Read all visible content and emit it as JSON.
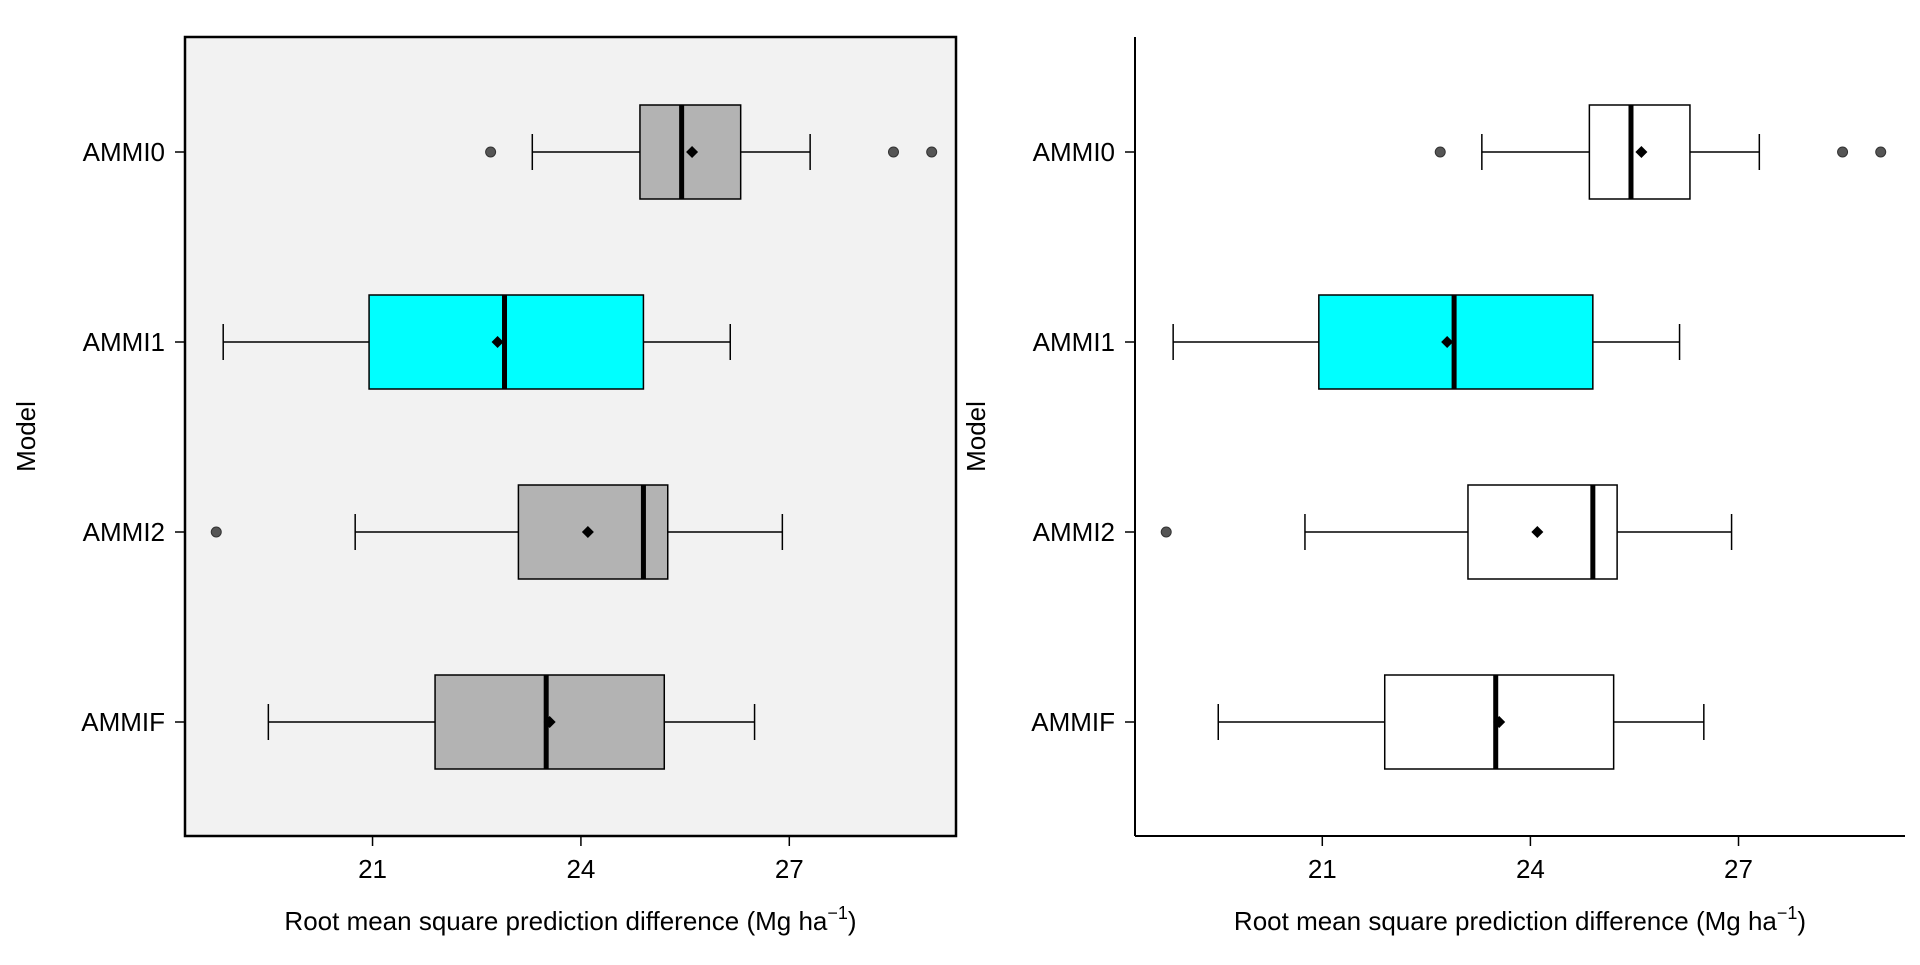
{
  "chart_data": [
    {
      "type": "boxplot",
      "orientation": "horizontal",
      "panel_style": "grey-background-framed",
      "xlabel_main": "Root mean square prediction difference (Mg ha",
      "xlabel_sup": "−1",
      "xlabel_close": ")",
      "ylabel": "Model",
      "xlim": [
        18.3,
        29.4
      ],
      "xticks": [
        21,
        24,
        27
      ],
      "xtick_labels": [
        "21",
        "24",
        "27"
      ],
      "box_color": "#b3b3b3",
      "highlight_color": "#00ffff",
      "background": "#f2f2f2",
      "boxes": [
        {
          "label": "AMMI0",
          "whisker_low": 23.3,
          "q1": 24.85,
          "median": 25.45,
          "q3": 26.3,
          "whisker_high": 27.3,
          "mean": 25.6,
          "outliers": [
            22.7,
            28.5,
            29.05
          ],
          "highlight": false
        },
        {
          "label": "AMMI1",
          "whisker_low": 18.85,
          "q1": 20.95,
          "median": 22.9,
          "q3": 24.9,
          "whisker_high": 26.15,
          "mean": 22.8,
          "outliers": [],
          "highlight": true
        },
        {
          "label": "AMMI2",
          "whisker_low": 20.75,
          "q1": 23.1,
          "median": 24.9,
          "q3": 25.25,
          "whisker_high": 26.9,
          "mean": 24.1,
          "outliers": [
            18.75
          ],
          "highlight": false
        },
        {
          "label": "AMMIF",
          "whisker_low": 19.5,
          "q1": 21.9,
          "median": 23.5,
          "q3": 25.2,
          "whisker_high": 26.5,
          "mean": 23.55,
          "outliers": [],
          "highlight": false
        }
      ]
    },
    {
      "type": "boxplot",
      "orientation": "horizontal",
      "panel_style": "white-open-axes",
      "xlabel_main": "Root mean square prediction difference (Mg ha",
      "xlabel_sup": "−1",
      "xlabel_close": ")",
      "ylabel": "Model",
      "xlim": [
        18.3,
        29.4
      ],
      "xticks": [
        21,
        24,
        27
      ],
      "xtick_labels": [
        "21",
        "24",
        "27"
      ],
      "box_color": "#ffffff",
      "highlight_color": "#00ffff",
      "background": "#ffffff",
      "boxes": [
        {
          "label": "AMMI0",
          "whisker_low": 23.3,
          "q1": 24.85,
          "median": 25.45,
          "q3": 26.3,
          "whisker_high": 27.3,
          "mean": 25.6,
          "outliers": [
            22.7,
            28.5,
            29.05
          ],
          "highlight": false
        },
        {
          "label": "AMMI1",
          "whisker_low": 18.85,
          "q1": 20.95,
          "median": 22.9,
          "q3": 24.9,
          "whisker_high": 26.15,
          "mean": 22.8,
          "outliers": [],
          "highlight": true
        },
        {
          "label": "AMMI2",
          "whisker_low": 20.75,
          "q1": 23.1,
          "median": 24.9,
          "q3": 25.25,
          "whisker_high": 26.9,
          "mean": 24.1,
          "outliers": [
            18.75
          ],
          "highlight": false
        },
        {
          "label": "AMMIF",
          "whisker_low": 19.5,
          "q1": 21.9,
          "median": 23.5,
          "q3": 25.2,
          "whisker_high": 26.5,
          "mean": 23.55,
          "outliers": [],
          "highlight": false
        }
      ]
    }
  ]
}
